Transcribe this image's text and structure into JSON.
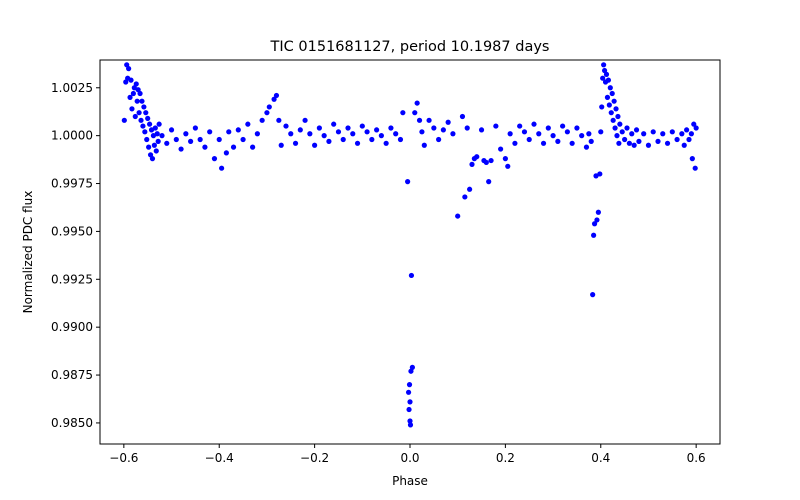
{
  "chart_data": {
    "type": "scatter",
    "title": "TIC 0151681127, period 10.1987 days",
    "xlabel": "Phase",
    "ylabel": "Normalized PDC flux",
    "xlim": [
      -0.65,
      0.65
    ],
    "ylim": [
      0.9839,
      1.00395
    ],
    "xticks": [
      -0.6,
      -0.4,
      -0.2,
      0.0,
      0.2,
      0.4,
      0.6
    ],
    "xtick_labels": [
      "−0.6",
      "−0.4",
      "−0.2",
      "0.0",
      "0.2",
      "0.4",
      "0.6"
    ],
    "yticks": [
      0.985,
      0.9875,
      0.99,
      0.9925,
      0.995,
      0.9975,
      1.0,
      1.0025
    ],
    "ytick_labels": [
      "0.9850",
      "0.9875",
      "0.9900",
      "0.9925",
      "0.9950",
      "0.9975",
      "1.0000",
      "1.0025"
    ],
    "grid": false,
    "marker_color": "#0000ff",
    "series": [
      {
        "name": "PDC flux",
        "x": [
          -0.599,
          -0.596,
          -0.594,
          -0.592,
          -0.59,
          -0.587,
          -0.585,
          -0.583,
          -0.58,
          -0.578,
          -0.576,
          -0.574,
          -0.572,
          -0.57,
          -0.568,
          -0.566,
          -0.564,
          -0.562,
          -0.56,
          -0.558,
          -0.556,
          -0.554,
          -0.552,
          -0.55,
          -0.548,
          -0.546,
          -0.544,
          -0.542,
          -0.54,
          -0.538,
          -0.536,
          -0.534,
          -0.532,
          -0.53,
          -0.528,
          -0.526,
          -0.52,
          -0.51,
          -0.5,
          -0.49,
          -0.48,
          -0.47,
          -0.46,
          -0.45,
          -0.44,
          -0.43,
          -0.42,
          -0.41,
          -0.4,
          -0.395,
          -0.385,
          -0.38,
          -0.37,
          -0.36,
          -0.35,
          -0.34,
          -0.33,
          -0.32,
          -0.31,
          -0.3,
          -0.295,
          -0.285,
          -0.28,
          -0.275,
          -0.27,
          -0.26,
          -0.25,
          -0.24,
          -0.23,
          -0.22,
          -0.21,
          -0.2,
          -0.19,
          -0.18,
          -0.17,
          -0.16,
          -0.15,
          -0.14,
          -0.13,
          -0.12,
          -0.11,
          -0.1,
          -0.09,
          -0.08,
          -0.07,
          -0.06,
          -0.05,
          -0.04,
          -0.03,
          -0.02,
          -0.015,
          -0.005,
          -0.003,
          -0.002,
          -0.001,
          0.0,
          0.0,
          0.001,
          0.002,
          0.003,
          0.005,
          0.01,
          0.015,
          0.02,
          0.025,
          0.03,
          0.04,
          0.05,
          0.06,
          0.07,
          0.08,
          0.09,
          0.1,
          0.11,
          0.115,
          0.12,
          0.125,
          0.13,
          0.135,
          0.14,
          0.15,
          0.155,
          0.16,
          0.165,
          0.17,
          0.18,
          0.19,
          0.2,
          0.205,
          0.21,
          0.22,
          0.23,
          0.24,
          0.25,
          0.26,
          0.27,
          0.28,
          0.29,
          0.3,
          0.31,
          0.32,
          0.33,
          0.34,
          0.35,
          0.36,
          0.37,
          0.375,
          0.38,
          0.383,
          0.385,
          0.387,
          0.39,
          0.392,
          0.395,
          0.398,
          0.4,
          0.402,
          0.404,
          0.406,
          0.408,
          0.41,
          0.412,
          0.414,
          0.416,
          0.418,
          0.42,
          0.422,
          0.424,
          0.426,
          0.428,
          0.43,
          0.432,
          0.434,
          0.436,
          0.438,
          0.44,
          0.445,
          0.45,
          0.455,
          0.46,
          0.465,
          0.47,
          0.475,
          0.48,
          0.49,
          0.5,
          0.51,
          0.52,
          0.53,
          0.54,
          0.55,
          0.56,
          0.57,
          0.575,
          0.58,
          0.585,
          0.59,
          0.592,
          0.595,
          0.598,
          0.6
        ],
        "y": [
          1.0008,
          1.0028,
          1.0037,
          1.003,
          1.0035,
          1.002,
          1.0029,
          1.0014,
          1.0022,
          1.0025,
          1.001,
          1.0027,
          1.0018,
          1.0024,
          1.0012,
          1.0022,
          1.0008,
          1.0018,
          1.0005,
          1.0015,
          1.0002,
          1.0012,
          0.9998,
          1.0009,
          0.9994,
          1.0006,
          0.999,
          1.0003,
          0.9988,
          1.0,
          0.9995,
          1.0004,
          0.9992,
          1.0001,
          0.9997,
          1.0006,
          1.0,
          0.9996,
          1.0003,
          0.9998,
          0.9993,
          1.0001,
          0.9997,
          1.0004,
          0.9998,
          0.9994,
          1.0002,
          0.9988,
          0.9998,
          0.9983,
          0.9991,
          1.0002,
          0.9994,
          1.0003,
          0.9998,
          1.0006,
          0.9994,
          1.0001,
          1.0008,
          1.0012,
          1.0015,
          1.0019,
          1.0021,
          1.0008,
          0.9995,
          1.0005,
          1.0001,
          0.9996,
          1.0003,
          1.0008,
          1.0001,
          0.9995,
          1.0004,
          1.0,
          0.9997,
          1.0006,
          1.0002,
          0.9998,
          1.0004,
          1.0001,
          0.9996,
          1.0005,
          1.0002,
          0.9998,
          1.0003,
          1.0,
          0.9996,
          1.0004,
          1.0001,
          0.9998,
          1.0012,
          0.9976,
          0.9866,
          0.9857,
          0.987,
          0.9851,
          0.9861,
          0.9849,
          0.9877,
          0.9927,
          0.9879,
          1.0012,
          1.0017,
          1.0008,
          1.0002,
          0.9995,
          1.0008,
          1.0004,
          0.9998,
          1.0003,
          1.0007,
          1.0001,
          0.9958,
          1.001,
          0.9968,
          1.0004,
          0.9972,
          0.9985,
          0.9988,
          0.9989,
          1.0003,
          0.9987,
          0.9986,
          0.9976,
          0.9987,
          1.0005,
          0.9993,
          0.9988,
          0.9984,
          1.0001,
          0.9996,
          1.0005,
          1.0002,
          0.9998,
          1.0006,
          1.0001,
          0.9996,
          1.0004,
          1.0,
          0.9997,
          1.0005,
          1.0002,
          0.9996,
          1.0004,
          1.0,
          0.9994,
          1.0001,
          0.9997,
          0.9917,
          0.9948,
          0.9954,
          0.9979,
          0.9956,
          0.996,
          0.998,
          1.0002,
          1.0015,
          1.003,
          1.0037,
          1.0034,
          1.0028,
          1.0032,
          1.002,
          1.0029,
          1.0016,
          1.0025,
          1.0012,
          1.0022,
          1.0008,
          1.0018,
          1.0004,
          1.0014,
          1.0,
          1.001,
          0.9996,
          1.0006,
          1.0002,
          0.9998,
          1.0004,
          0.9996,
          1.0001,
          0.9995,
          1.0003,
          0.9997,
          1.0001,
          0.9995,
          1.0002,
          0.9997,
          1.0001,
          0.9996,
          1.0002,
          0.9998,
          1.0001,
          0.9995,
          1.0003,
          0.9998,
          1.0001,
          0.9988,
          1.0006,
          0.9983,
          1.0004
        ]
      }
    ]
  }
}
